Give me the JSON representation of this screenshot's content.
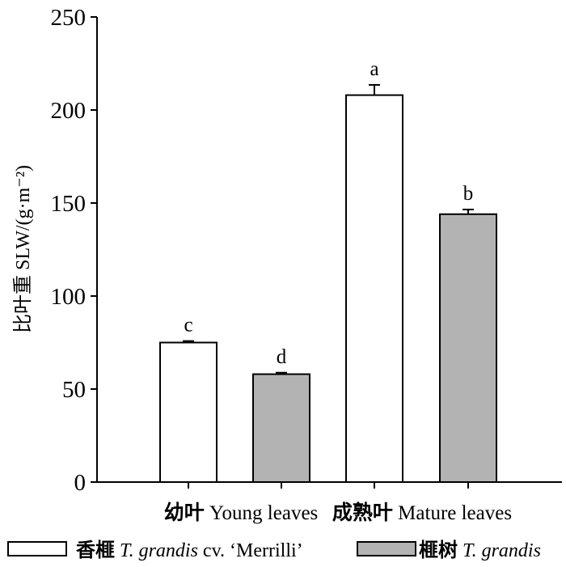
{
  "chart_data": {
    "type": "bar",
    "ylabel": "比叶重 SLW/(g·m⁻²)",
    "ylim": [
      0,
      250
    ],
    "yticks": [
      0,
      50,
      100,
      150,
      200,
      250
    ],
    "groups": [
      {
        "cn": "幼叶",
        "en": "Young leaves"
      },
      {
        "cn": "成熟叶",
        "en": "Mature leaves"
      }
    ],
    "series": [
      {
        "legend_cn": "香榧",
        "legend_italic": "T. grandis",
        "legend_rest": " cv. ‘Merrilli’",
        "color": "#ffffff",
        "values": [
          75,
          208
        ],
        "errors": [
          0.8,
          5.5
        ],
        "letters": [
          "c",
          "a"
        ]
      },
      {
        "legend_cn": "榧树",
        "legend_italic": "T. grandis",
        "legend_rest": "",
        "color": "#b3b3b3",
        "values": [
          58,
          144
        ],
        "errors": [
          0.8,
          2.5
        ],
        "letters": [
          "d",
          "b"
        ]
      }
    ]
  }
}
